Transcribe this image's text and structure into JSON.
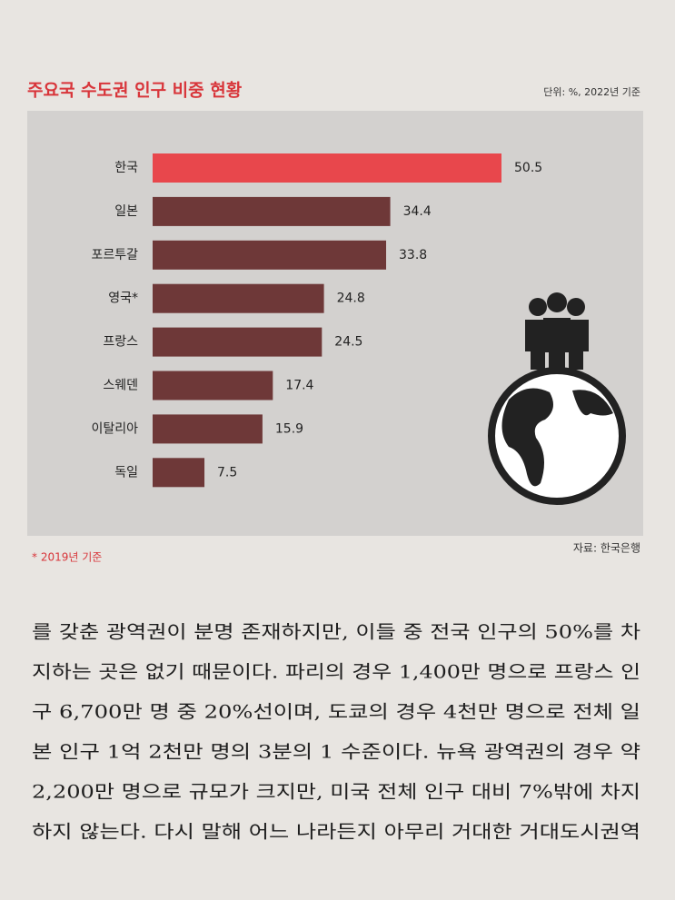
{
  "chart_data": {
    "type": "bar",
    "orientation": "horizontal",
    "title": "주요국 수도권 인구 비중 현황",
    "subtitle": "단위: %, 2022년 기준",
    "categories": [
      "한국",
      "일본",
      "포르투갈",
      "영국*",
      "프랑스",
      "스웨덴",
      "이탈리아",
      "독일"
    ],
    "values": [
      50.5,
      34.4,
      33.8,
      24.8,
      24.5,
      17.4,
      15.9,
      7.5
    ],
    "colors": [
      "#e8474c",
      "#6e3838",
      "#6e3838",
      "#6e3838",
      "#6e3838",
      "#6e3838",
      "#6e3838",
      "#6e3838"
    ],
    "footnote": "* 2019년 기준",
    "source": "자료: 한국은행"
  },
  "body_text": {
    "lines": [
      "를 갖춘 광역권이 분명 존재하지만, 이들 중 전국 인구의 50%를 차",
      "지하는 곳은 없기 때문이다. 파리의 경우 1,400만 명으로 프랑스 인",
      "구 6,700만 명 중 20%선이며, 도쿄의 경우 4천만 명으로 전체 일",
      "본 인구 1억 2천만 명의 3분의 1 수준이다. 뉴욕 광역권의 경우 약",
      "2,200만 명으로 규모가 크지만, 미국 전체 인구 대비 7%밖에 차지",
      "하지 않는다. 다시 말해 어느 나라든지 아무리 거대한 거대도시권역"
    ]
  }
}
